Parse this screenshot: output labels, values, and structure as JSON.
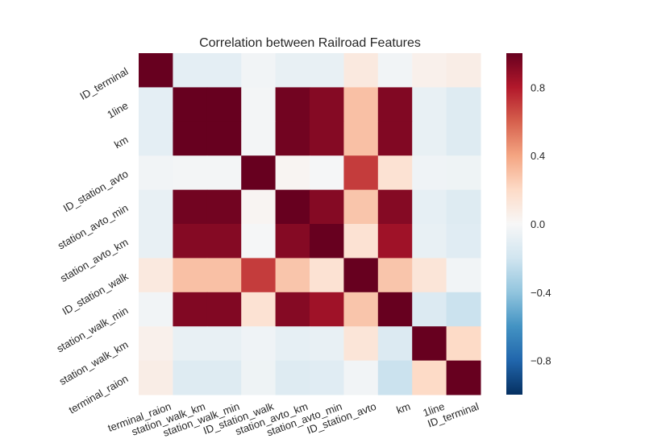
{
  "chart_data": {
    "type": "heatmap",
    "title": "Correlation between Railroad Features",
    "x_labels": [
      "terminal_raion",
      "station_walk_km",
      "station_walk_min",
      "ID_station_walk",
      "station_avto_km",
      "station_avto_min",
      "ID_station_avto",
      "km",
      "1line",
      "ID_terminal"
    ],
    "y_labels": [
      "ID_terminal",
      "1line",
      "km",
      "ID_station_avto",
      "station_avto_min",
      "station_avto_km",
      "ID_station_walk",
      "station_walk_min",
      "station_walk_km",
      "terminal_raion"
    ],
    "values": [
      [
        1.0,
        -0.1,
        -0.1,
        -0.03,
        -0.08,
        -0.08,
        0.1,
        -0.03,
        0.05,
        0.07
      ],
      [
        -0.1,
        1.0,
        1.0,
        -0.02,
        0.97,
        0.92,
        0.3,
        0.93,
        -0.08,
        -0.13
      ],
      [
        -0.1,
        1.0,
        1.0,
        -0.02,
        0.97,
        0.92,
        0.3,
        0.93,
        -0.08,
        -0.13
      ],
      [
        -0.03,
        -0.02,
        -0.02,
        1.0,
        0.02,
        -0.01,
        0.7,
        0.15,
        -0.04,
        -0.05
      ],
      [
        -0.08,
        0.97,
        0.97,
        0.02,
        1.0,
        0.92,
        0.28,
        0.92,
        -0.09,
        -0.13
      ],
      [
        -0.08,
        0.92,
        0.92,
        -0.01,
        0.92,
        1.0,
        0.15,
        0.85,
        -0.08,
        -0.12
      ],
      [
        0.1,
        0.3,
        0.3,
        0.7,
        0.28,
        0.15,
        1.0,
        0.28,
        0.13,
        -0.03
      ],
      [
        -0.03,
        0.93,
        0.93,
        0.15,
        0.92,
        0.85,
        0.28,
        1.0,
        -0.14,
        -0.22
      ],
      [
        0.05,
        -0.08,
        -0.08,
        -0.04,
        -0.09,
        -0.08,
        0.13,
        -0.14,
        1.0,
        0.2
      ],
      [
        0.07,
        -0.13,
        -0.13,
        -0.05,
        -0.13,
        -0.12,
        -0.03,
        -0.22,
        0.2,
        1.0
      ]
    ],
    "vmin": -1.0,
    "vmax": 1.0,
    "colormap": "RdBu_r",
    "colorbar_ticks": [
      0.8,
      0.4,
      0.0,
      -0.4,
      -0.8
    ],
    "colorbar_tick_labels": [
      "0.8",
      "0.4",
      "0.0",
      "−0.4",
      "−0.8"
    ],
    "grid": false
  }
}
